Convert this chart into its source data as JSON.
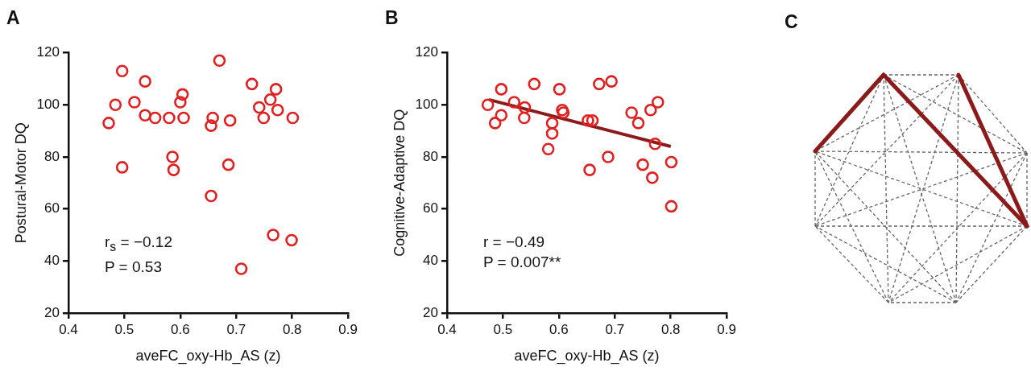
{
  "chart_data": [
    {
      "type": "scatter",
      "title": "A",
      "xlabel": "aveFC_oxy-Hb_AS (z)",
      "ylabel": "Postural-Motor DQ",
      "xlim": [
        0.4,
        0.9
      ],
      "xticks": [
        0.4,
        0.5,
        0.6,
        0.7,
        0.8,
        0.9
      ],
      "ylim": [
        20,
        120
      ],
      "yticks": [
        20,
        40,
        60,
        80,
        100,
        120
      ],
      "grid": false,
      "legend": false,
      "annotations": [
        "r$_{s}$ = −0.12",
        "P = 0.53"
      ],
      "series": [
        {
          "type": "scatter",
          "marker": "circle",
          "color": "#e02020",
          "x": [
            0.472,
            0.484,
            0.496,
            0.496,
            0.518,
            0.537,
            0.537,
            0.555,
            0.58,
            0.586,
            0.588,
            0.6,
            0.604,
            0.606,
            0.655,
            0.655,
            0.658,
            0.67,
            0.689,
            0.686,
            0.709,
            0.728,
            0.741,
            0.749,
            0.761,
            0.771,
            0.774,
            0.766,
            0.801,
            0.799
          ],
          "values": [
            93,
            100,
            113,
            76,
            101,
            109,
            96,
            95,
            95,
            80,
            75,
            101,
            104,
            95,
            65,
            92,
            95,
            117,
            94,
            77,
            37,
            108,
            99,
            95,
            102,
            106,
            98,
            50,
            95,
            48
          ]
        }
      ]
    },
    {
      "type": "scatter",
      "title": "B",
      "xlabel": "aveFC_oxy-Hb_AS (z)",
      "ylabel": "Cognitive-Adaptive DQ",
      "xlim": [
        0.4,
        0.9
      ],
      "xticks": [
        0.4,
        0.5,
        0.6,
        0.7,
        0.8,
        0.9
      ],
      "ylim": [
        20,
        120
      ],
      "yticks": [
        20,
        40,
        60,
        80,
        100,
        120
      ],
      "grid": false,
      "legend": false,
      "annotations": [
        "r = −0.49",
        "P = 0.007**"
      ],
      "series": [
        {
          "type": "scatter",
          "marker": "circle",
          "color": "#e02020",
          "x": [
            0.473,
            0.497,
            0.497,
            0.486,
            0.52,
            0.539,
            0.538,
            0.556,
            0.581,
            0.588,
            0.588,
            0.601,
            0.606,
            0.608,
            0.652,
            0.66,
            0.655,
            0.672,
            0.694,
            0.688,
            0.73,
            0.742,
            0.764,
            0.777,
            0.772,
            0.75,
            0.767,
            0.801,
            0.801
          ],
          "values": [
            100,
            106,
            96,
            93,
            101,
            99,
            95,
            108,
            83,
            93,
            89,
            106,
            98,
            97,
            94,
            94,
            75,
            108,
            109,
            80,
            97,
            93,
            98,
            101,
            85,
            77,
            72,
            78,
            61
          ]
        },
        {
          "type": "line",
          "marker": "none",
          "color": "#8b1a1a",
          "x": [
            0.475,
            0.8
          ],
          "values": [
            102,
            84
          ]
        }
      ]
    },
    {
      "type": "other",
      "title": "C"
    }
  ]
}
